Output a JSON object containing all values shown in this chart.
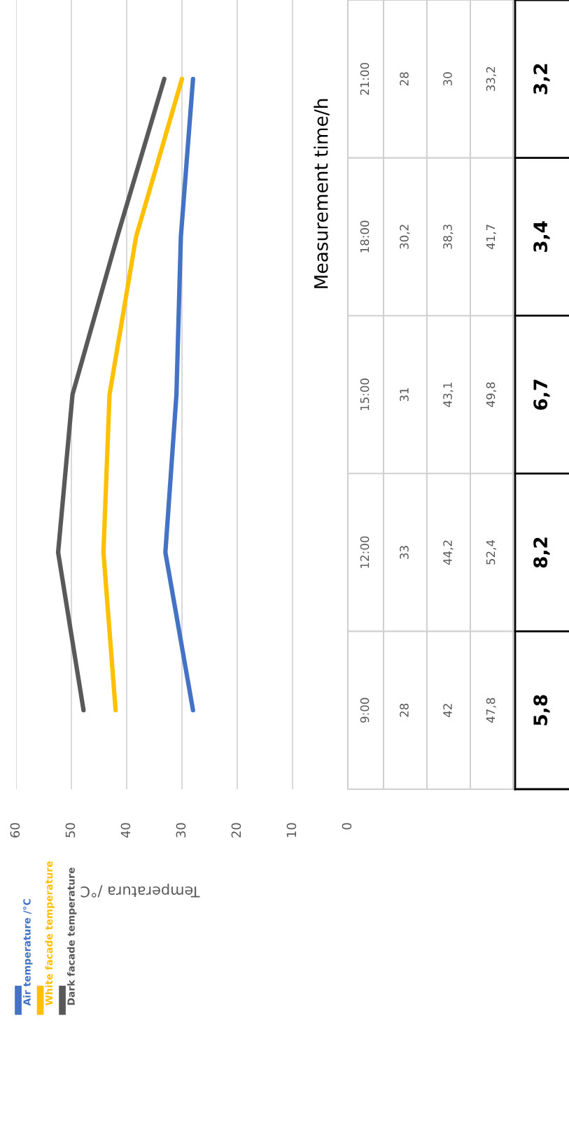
{
  "chart_data": {
    "type": "line",
    "orientation": "horizontal",
    "xlabel": "Temperatura /°C",
    "ylabel": "Measurement time/h",
    "categories": [
      "21:00",
      "18:00",
      "15:00",
      "12:00",
      "9:00"
    ],
    "series": [
      {
        "name": "Air temperature /°C",
        "color": "#4472c4",
        "values": [
          28,
          30.2,
          31,
          33,
          28
        ],
        "value_labels": [
          "28",
          "30,2",
          "31",
          "33",
          "28"
        ]
      },
      {
        "name": "White facade temperature",
        "color": "#ffc000",
        "values": [
          30,
          38.3,
          43.1,
          44.2,
          42
        ],
        "value_labels": [
          "30",
          "38,3",
          "43,1",
          "44,2",
          "42"
        ]
      },
      {
        "name": "Dark facade temperature",
        "color": "#595959",
        "values": [
          33.2,
          41.7,
          49.8,
          52.4,
          47.8
        ],
        "value_labels": [
          "33,2",
          "41,7",
          "49,8",
          "52,4",
          "47,8"
        ]
      }
    ],
    "xlim": [
      60,
      0
    ],
    "xticks": [
      60,
      50,
      40,
      30,
      20,
      10,
      0
    ],
    "grid": "x",
    "legend": "bottom left",
    "marker": "none",
    "line_style": "solid",
    "annotations": [
      "3,2",
      "3,4",
      "6,7",
      "8,2",
      "5,8"
    ]
  }
}
